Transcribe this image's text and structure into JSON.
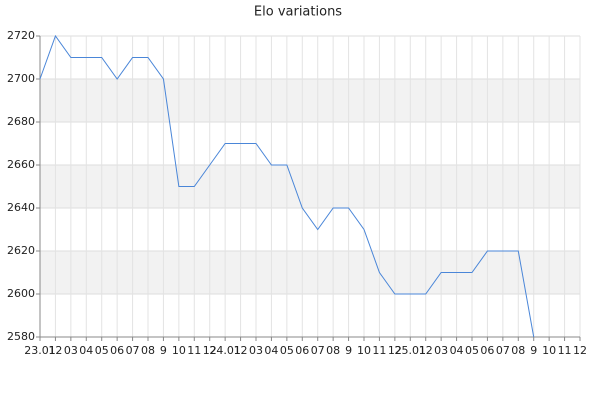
{
  "chart_data": {
    "type": "line",
    "title": "Elo variations",
    "categories": [
      "23.01",
      "12",
      "03",
      "04",
      "05",
      "06",
      "07",
      "08",
      "9",
      "10",
      "11",
      "12",
      "24.01",
      "12",
      "03",
      "04",
      "05",
      "06",
      "07",
      "08",
      "9",
      "10",
      "11",
      "12",
      "25.01",
      "12",
      "03",
      "04",
      "05",
      "06",
      "07",
      "08",
      "9",
      "10",
      "11",
      "12"
    ],
    "series": [
      {
        "name": "Elo",
        "color": "#4a86d8",
        "values": [
          2700,
          2720,
          2710,
          2710,
          2710,
          2700,
          2710,
          2710,
          2700,
          2650,
          2650,
          2660,
          2670,
          2670,
          2670,
          2660,
          2660,
          2640,
          2630,
          2640,
          2640,
          2630,
          2610,
          2600,
          2600,
          2600,
          2610,
          2610,
          2610,
          2620,
          2620,
          2620,
          2580,
          null,
          null,
          null
        ]
      }
    ],
    "ylim": [
      2580,
      2720
    ],
    "yticks": [
      2580,
      2600,
      2620,
      2640,
      2660,
      2680,
      2700,
      2720
    ],
    "grid": true,
    "alternate_bands": true,
    "legend": false
  }
}
